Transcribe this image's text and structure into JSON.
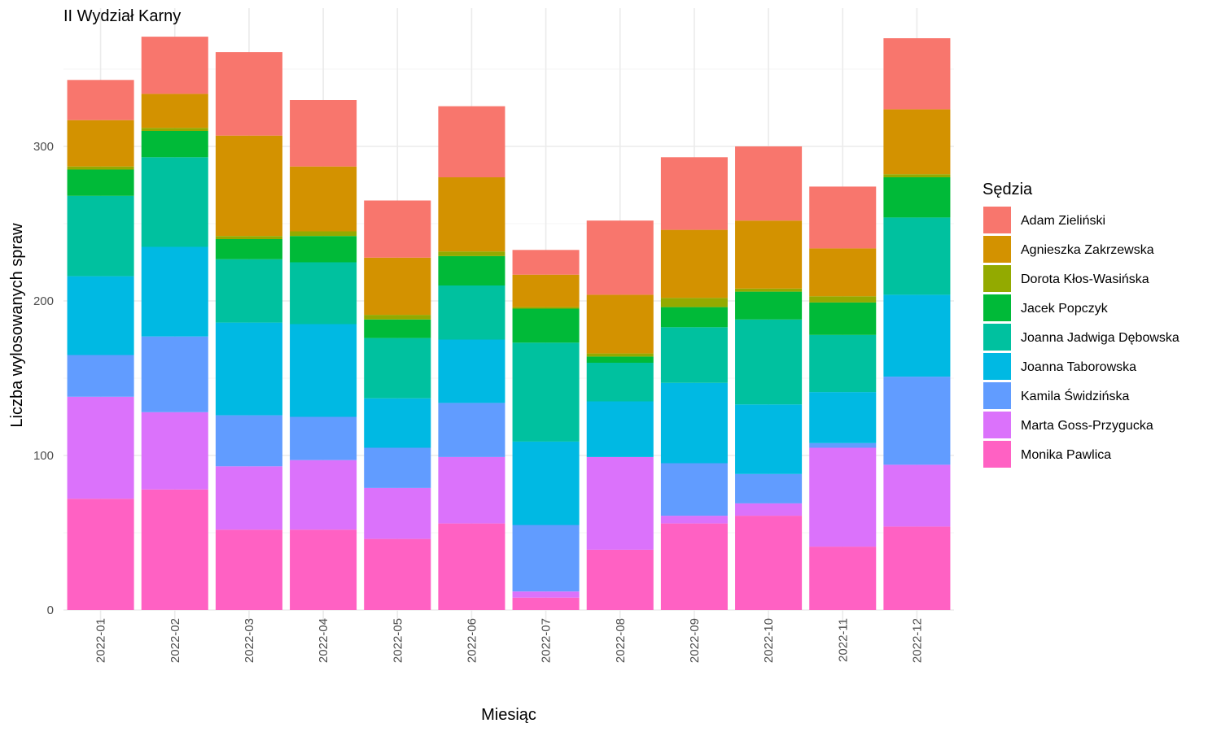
{
  "chart_data": {
    "type": "bar",
    "stacked": true,
    "title": "II Wydział Karny",
    "xlabel": "Miesiąc",
    "ylabel": "Liczba wylosowanych spraw",
    "ylim": [
      0,
      370
    ],
    "yticks": [
      0,
      100,
      200,
      300
    ],
    "grid": true,
    "legend_title": "Sędzia",
    "legend_position": "right",
    "categories": [
      "2022-01",
      "2022-02",
      "2022-03",
      "2022-04",
      "2022-05",
      "2022-06",
      "2022-07",
      "2022-08",
      "2022-09",
      "2022-10",
      "2022-11",
      "2022-12"
    ],
    "series": [
      {
        "name": "Monika Pawlica",
        "color": "#FF61C3",
        "values": [
          72,
          78,
          52,
          52,
          46,
          56,
          8,
          39,
          56,
          61,
          41,
          54
        ]
      },
      {
        "name": "Marta Goss-Przygucka",
        "color": "#DB72FB",
        "values": [
          66,
          50,
          41,
          45,
          33,
          43,
          4,
          60,
          5,
          8,
          64,
          40
        ]
      },
      {
        "name": "Kamila Świdzińska",
        "color": "#619CFF",
        "values": [
          27,
          49,
          33,
          28,
          26,
          35,
          43,
          0,
          34,
          19,
          3,
          57
        ]
      },
      {
        "name": "Joanna Taborowska",
        "color": "#00B9E3",
        "values": [
          51,
          58,
          60,
          60,
          32,
          41,
          54,
          36,
          52,
          45,
          33,
          53
        ]
      },
      {
        "name": "Joanna Jadwiga Dębowska",
        "color": "#00C19F",
        "values": [
          52,
          58,
          41,
          40,
          39,
          35,
          64,
          25,
          36,
          55,
          37,
          50
        ]
      },
      {
        "name": "Jacek Popczyk",
        "color": "#00BA38",
        "values": [
          17,
          17,
          13,
          17,
          12,
          19,
          22,
          4,
          13,
          18,
          21,
          26
        ]
      },
      {
        "name": "Dorota Kłos-Wasińska",
        "color": "#93AA00",
        "values": [
          2,
          2,
          2,
          3,
          3,
          3,
          1,
          2,
          6,
          2,
          4,
          2
        ]
      },
      {
        "name": "Agnieszka Zakrzewska",
        "color": "#D39200",
        "values": [
          30,
          22,
          65,
          42,
          37,
          48,
          21,
          38,
          44,
          44,
          31,
          42
        ]
      },
      {
        "name": "Adam Zieliński",
        "color": "#F8766D",
        "values": [
          26,
          37,
          54,
          43,
          37,
          46,
          16,
          48,
          47,
          48,
          40,
          46
        ]
      }
    ]
  }
}
